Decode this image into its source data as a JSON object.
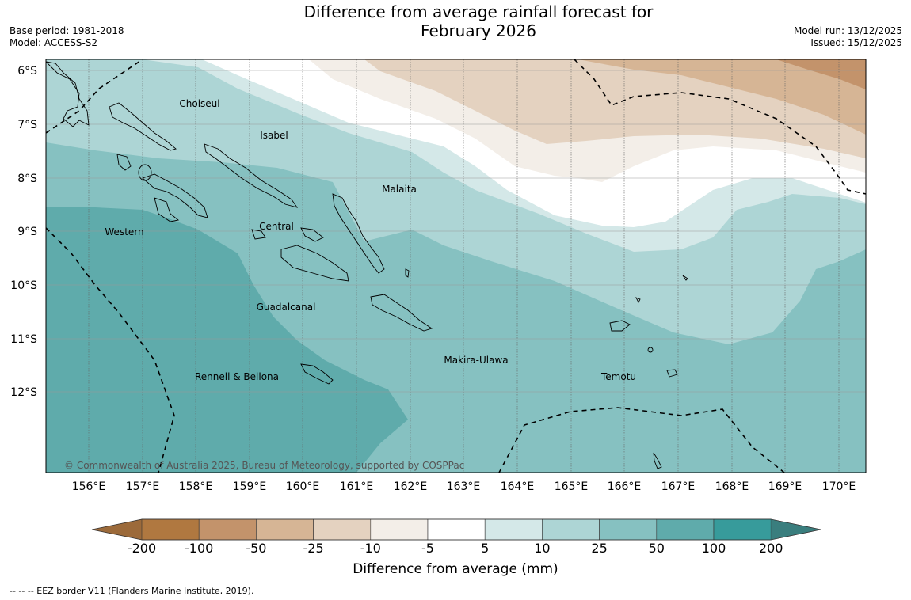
{
  "title_line1": "Difference from average rainfall forecast for",
  "title_line2": "February 2026",
  "base_period": "Base period: 1981-2018",
  "model": "Model: ACCESS-S2",
  "model_run": "Model run: 13/12/2025",
  "issued": "Issued: 15/12/2025",
  "copyright": "© Commonwealth of Australia 2025, Bureau of Meteorology, supported by COSPPac",
  "footnote": "--  --  -- EEZ border V11 (Flanders Marine Institute, 2019).",
  "colorbar": {
    "title": "Difference from average (mm)",
    "labels": [
      "-200",
      "-100",
      "-50",
      "-25",
      "-10",
      "-5",
      "5",
      "10",
      "25",
      "50",
      "100",
      "200"
    ],
    "colors": [
      "#9c6a3a",
      "#b07840",
      "#c3936b",
      "#d6b595",
      "#e4d2c0",
      "#f3eee8",
      "#ffffff",
      "#d4e8e8",
      "#add5d5",
      "#86c1c1",
      "#5fabab",
      "#379b9b",
      "#3a7e7e"
    ]
  },
  "axes": {
    "lon_labels": [
      "156°E",
      "157°E",
      "158°E",
      "159°E",
      "160°E",
      "161°E",
      "162°E",
      "163°E",
      "164°E",
      "165°E",
      "166°E",
      "167°E",
      "168°E",
      "169°E",
      "170°E"
    ],
    "lat_labels": [
      "6°S",
      "7°S",
      "8°S",
      "9°S",
      "10°S",
      "11°S",
      "12°S"
    ]
  },
  "regions": [
    "Choiseul",
    "Isabel",
    "Malaita",
    "Western",
    "Central",
    "Guadalcanal",
    "Makira-Ulawa",
    "Temotu",
    "Rennell & Bellona"
  ]
}
